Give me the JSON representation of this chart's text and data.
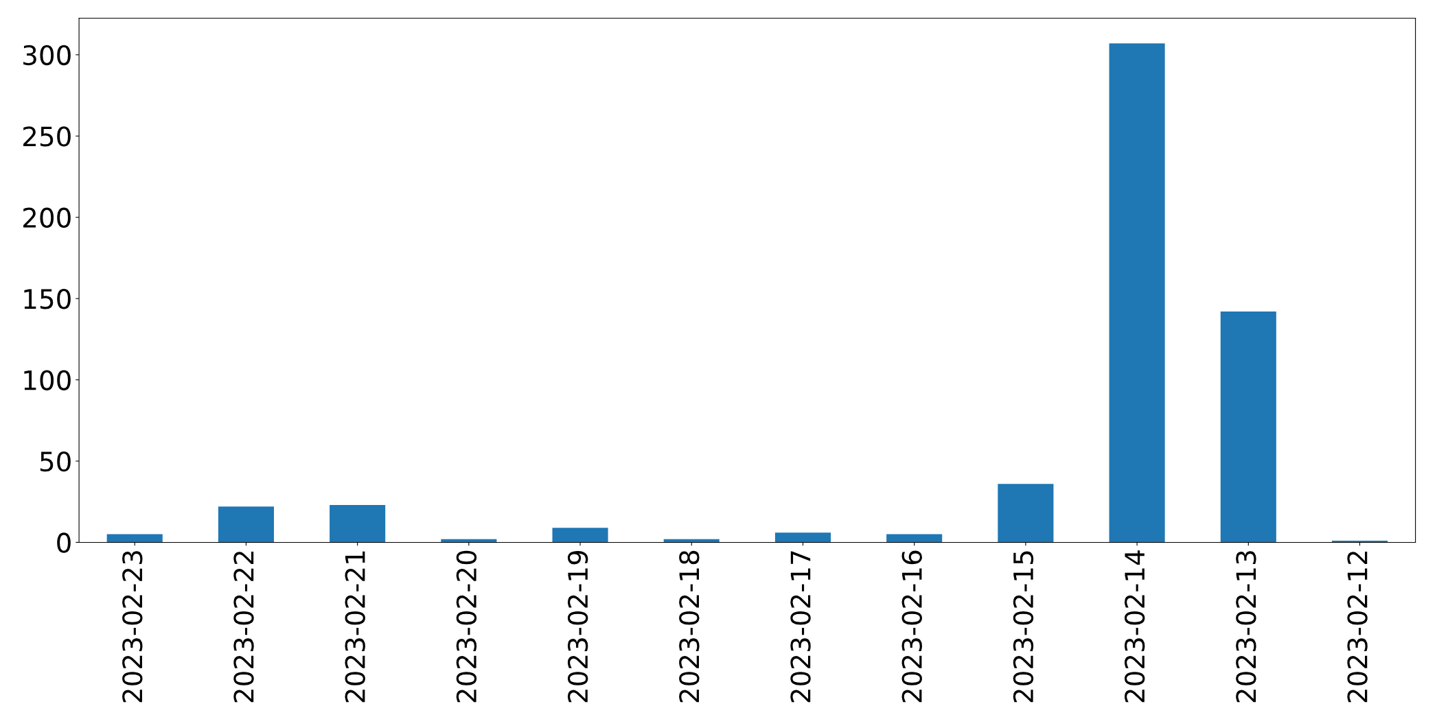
{
  "chart_data": {
    "type": "bar",
    "categories": [
      "2023-02-23",
      "2023-02-22",
      "2023-02-21",
      "2023-02-20",
      "2023-02-19",
      "2023-02-18",
      "2023-02-17",
      "2023-02-16",
      "2023-02-15",
      "2023-02-14",
      "2023-02-13",
      "2023-02-12"
    ],
    "values": [
      5,
      22,
      23,
      2,
      9,
      2,
      6,
      5,
      36,
      307,
      142,
      1
    ],
    "color": "#1f77b4",
    "ylim": [
      0,
      322.5
    ],
    "yticks": [
      0,
      50,
      100,
      150,
      200,
      250,
      300
    ],
    "grid": false,
    "legend": false
  }
}
